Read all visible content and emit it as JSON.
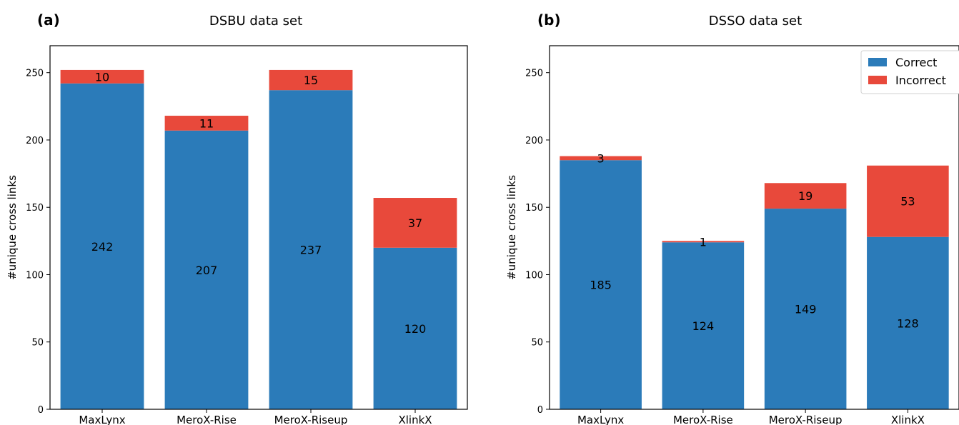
{
  "colors": {
    "correct": "#2b7bb9",
    "incorrect": "#e8493b"
  },
  "chart_data": [
    {
      "type": "bar",
      "stacked": true,
      "panel": "(a)",
      "title": "DSBU data set",
      "xlabel": "",
      "ylabel": "#unique cross links",
      "ylim": [
        0,
        270
      ],
      "yticks": [
        0,
        50,
        100,
        150,
        200,
        250
      ],
      "categories": [
        "MaxLynx",
        "MeroX-Rise",
        "MeroX-Riseup",
        "XlinkX"
      ],
      "series": [
        {
          "name": "Correct",
          "values": [
            242,
            207,
            237,
            120
          ]
        },
        {
          "name": "Incorrect",
          "values": [
            10,
            11,
            15,
            37
          ]
        }
      ],
      "legend": null,
      "grid": false
    },
    {
      "type": "bar",
      "stacked": true,
      "panel": "(b)",
      "title": "DSSO data set",
      "xlabel": "",
      "ylabel": "#unique cross links",
      "ylim": [
        0,
        270
      ],
      "yticks": [
        0,
        50,
        100,
        150,
        200,
        250
      ],
      "categories": [
        "MaxLynx",
        "MeroX-Rise",
        "MeroX-Riseup",
        "XlinkX"
      ],
      "series": [
        {
          "name": "Correct",
          "values": [
            185,
            124,
            149,
            128
          ]
        },
        {
          "name": "Incorrect",
          "values": [
            3,
            1,
            19,
            53
          ]
        }
      ],
      "legend": "top-right",
      "grid": false
    }
  ]
}
